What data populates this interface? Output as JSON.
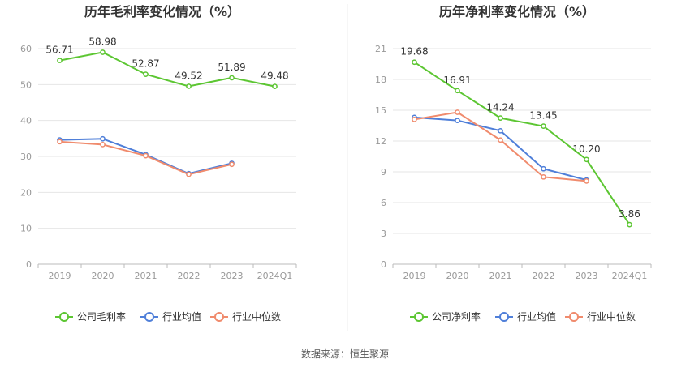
{
  "footer": {
    "source": "数据来源：恒生聚源"
  },
  "colors": {
    "company": "#5cc632",
    "avg": "#4f7fd9",
    "median": "#f08b6d",
    "grid": "#e6e6e6",
    "axis": "#999999"
  },
  "chart_data": [
    {
      "type": "line",
      "title": "历年毛利率变化情况（%）",
      "categories": [
        "2019",
        "2020",
        "2021",
        "2022",
        "2023",
        "2024Q1"
      ],
      "ylim": [
        0,
        60
      ],
      "yticks": [
        0,
        10,
        20,
        30,
        40,
        50,
        60
      ],
      "grid": true,
      "legend_position": "bottom",
      "series": [
        {
          "name": "公司毛利率",
          "color": "#5cc632",
          "values": [
            56.71,
            58.98,
            52.87,
            49.52,
            51.89,
            49.48
          ],
          "labels": true
        },
        {
          "name": "行业均值",
          "color": "#4f7fd9",
          "values": [
            34.6,
            34.9,
            30.5,
            25.2,
            28.1,
            null
          ],
          "labels": false
        },
        {
          "name": "行业中位数",
          "color": "#f08b6d",
          "values": [
            34.1,
            33.3,
            30.2,
            25.0,
            27.8,
            null
          ],
          "labels": false
        }
      ]
    },
    {
      "type": "line",
      "title": "历年净利率变化情况（%）",
      "categories": [
        "2019",
        "2020",
        "2021",
        "2022",
        "2023",
        "2024Q1"
      ],
      "ylim": [
        0,
        21
      ],
      "yticks": [
        0,
        3,
        6,
        9,
        12,
        15,
        18,
        21
      ],
      "grid": true,
      "legend_position": "bottom",
      "series": [
        {
          "name": "公司净利率",
          "color": "#5cc632",
          "values": [
            19.68,
            16.91,
            14.24,
            13.45,
            10.2,
            3.86
          ],
          "labels": true
        },
        {
          "name": "行业均值",
          "color": "#4f7fd9",
          "values": [
            14.3,
            14.0,
            13.0,
            9.3,
            8.2,
            null
          ],
          "labels": false
        },
        {
          "name": "行业中位数",
          "color": "#f08b6d",
          "values": [
            14.1,
            14.8,
            12.1,
            8.5,
            8.1,
            null
          ],
          "labels": false
        }
      ]
    }
  ]
}
